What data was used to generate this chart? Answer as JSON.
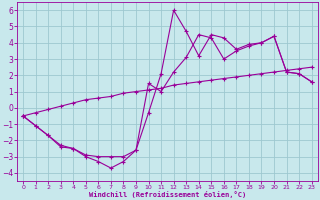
{
  "xlabel": "Windchill (Refroidissement éolien,°C)",
  "bg_color": "#c8e8ec",
  "grid_color": "#9ec8d0",
  "line_color": "#990099",
  "hours": [
    0,
    1,
    2,
    3,
    4,
    5,
    6,
    7,
    8,
    9,
    10,
    11,
    12,
    13,
    14,
    15,
    16,
    17,
    18,
    19,
    20,
    21,
    22,
    23
  ],
  "line_diagonal_y": [
    -0.5,
    -0.3,
    -0.1,
    0.1,
    0.3,
    0.5,
    0.6,
    0.7,
    0.9,
    1.0,
    1.1,
    1.2,
    1.4,
    1.5,
    1.6,
    1.7,
    1.8,
    1.9,
    2.0,
    2.1,
    2.2,
    2.3,
    2.4,
    2.5
  ],
  "line_spike_x": [
    0,
    1,
    2,
    3,
    4,
    5,
    6,
    7,
    8,
    9,
    10,
    11,
    12,
    13,
    14,
    15,
    16,
    17,
    18,
    19,
    20,
    21,
    22,
    23
  ],
  "line_spike_y": [
    -0.5,
    -1.1,
    -1.7,
    -2.4,
    -2.5,
    -2.9,
    -3.0,
    -3.0,
    -3.0,
    -2.6,
    -0.3,
    2.1,
    6.0,
    4.7,
    3.2,
    4.5,
    4.3,
    3.6,
    3.9,
    4.0,
    4.4,
    2.2,
    2.1,
    1.6
  ],
  "line_smooth_x": [
    0,
    1,
    2,
    3,
    4,
    5,
    6,
    7,
    8,
    9,
    10,
    11,
    12,
    13,
    14,
    15,
    16,
    17,
    18,
    19,
    20,
    21,
    22,
    23
  ],
  "line_smooth_y": [
    -0.5,
    -1.1,
    -1.7,
    -2.3,
    -2.5,
    -3.0,
    -3.3,
    -3.7,
    -3.3,
    -2.6,
    1.5,
    1.0,
    2.2,
    3.1,
    4.5,
    4.3,
    3.0,
    3.5,
    3.8,
    4.0,
    4.4,
    2.2,
    2.1,
    1.6
  ],
  "ylim": [
    -4.5,
    6.5
  ],
  "xlim": [
    -0.5,
    23.5
  ],
  "yticks": [
    -4,
    -3,
    -2,
    -1,
    0,
    1,
    2,
    3,
    4,
    5,
    6
  ],
  "xticks": [
    0,
    1,
    2,
    3,
    4,
    5,
    6,
    7,
    8,
    9,
    10,
    11,
    12,
    13,
    14,
    15,
    16,
    17,
    18,
    19,
    20,
    21,
    22,
    23
  ]
}
